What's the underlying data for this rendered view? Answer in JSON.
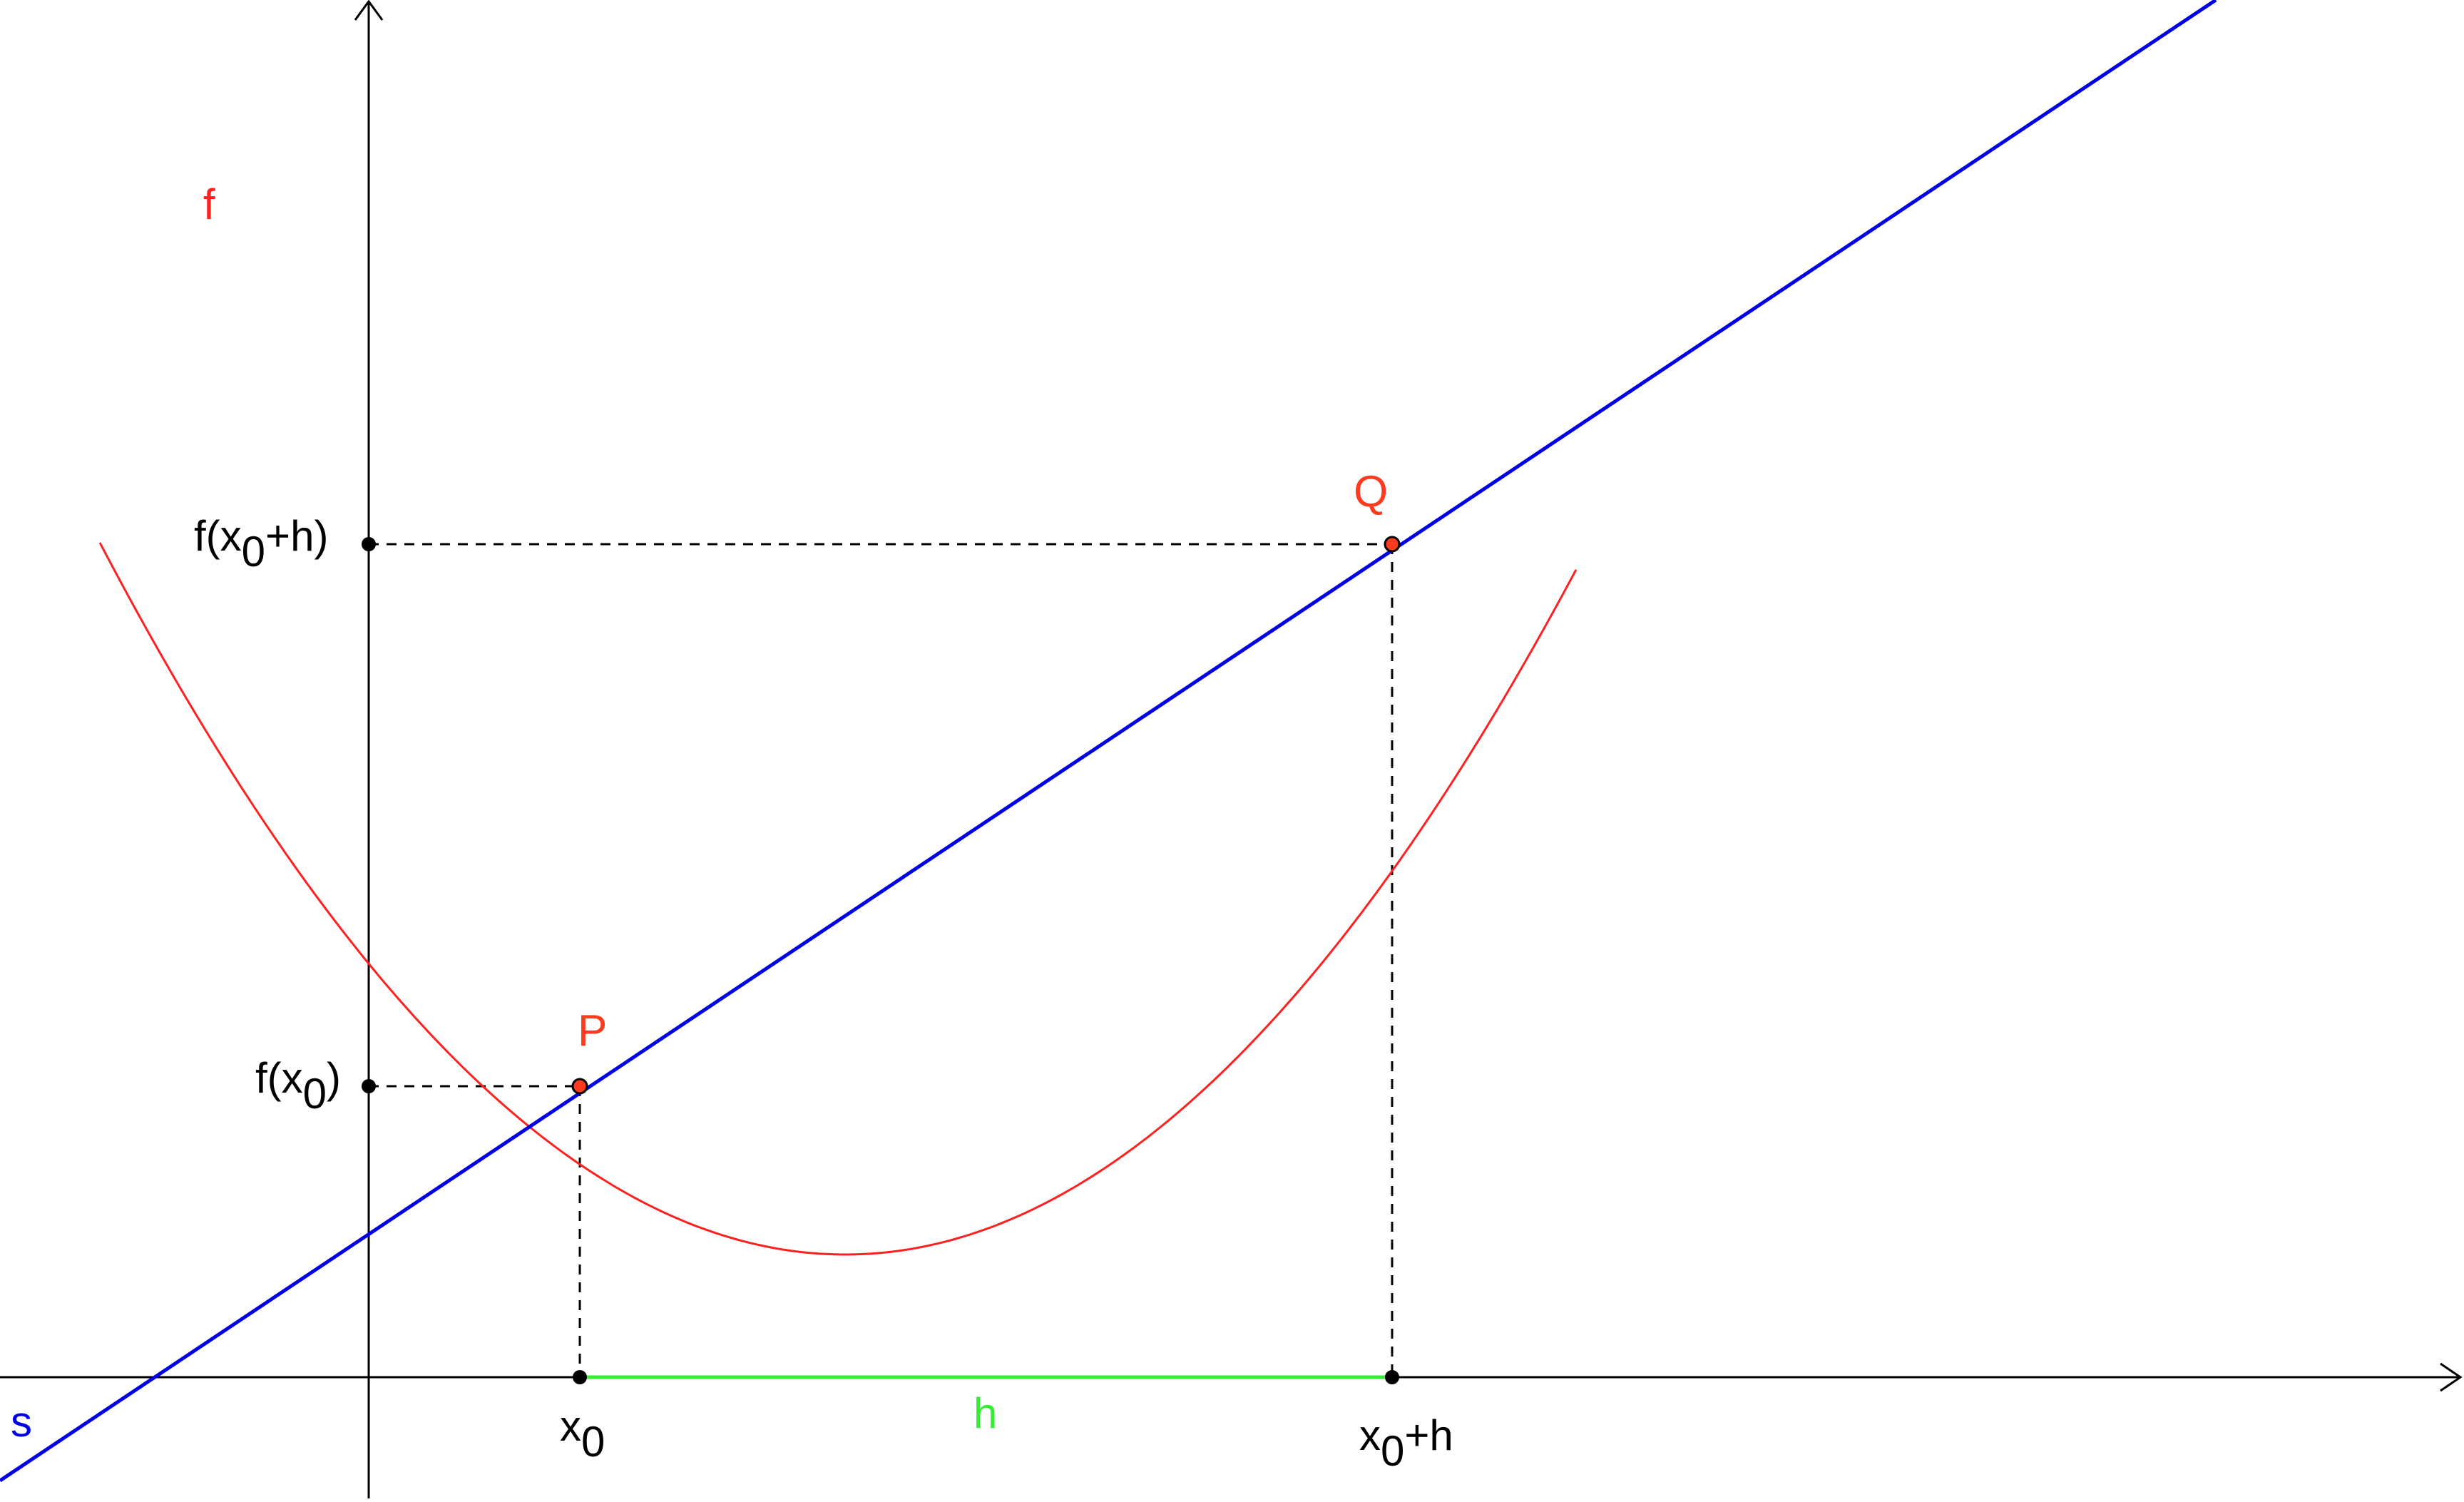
{
  "labels": {
    "curve": "f",
    "secant": "s",
    "point_p": "P",
    "point_q": "Q",
    "h": "h",
    "x0_main": "x",
    "x0_sub": "0",
    "x0h_main": "x",
    "x0h_sub": "0",
    "x0h_rest": "+h",
    "fx0_pre": "f(x",
    "fx0_sub": "0",
    "fx0_post": ")",
    "fx0h_pre": "f(x",
    "fx0h_sub": "0",
    "fx0h_post": "+h)"
  },
  "colors": {
    "curve": "#ff2020",
    "secant": "#0000e6",
    "h_segment": "#33ee33",
    "point_fill": "#ff3b1f",
    "axes": "#000000",
    "guides": "#000000"
  }
}
